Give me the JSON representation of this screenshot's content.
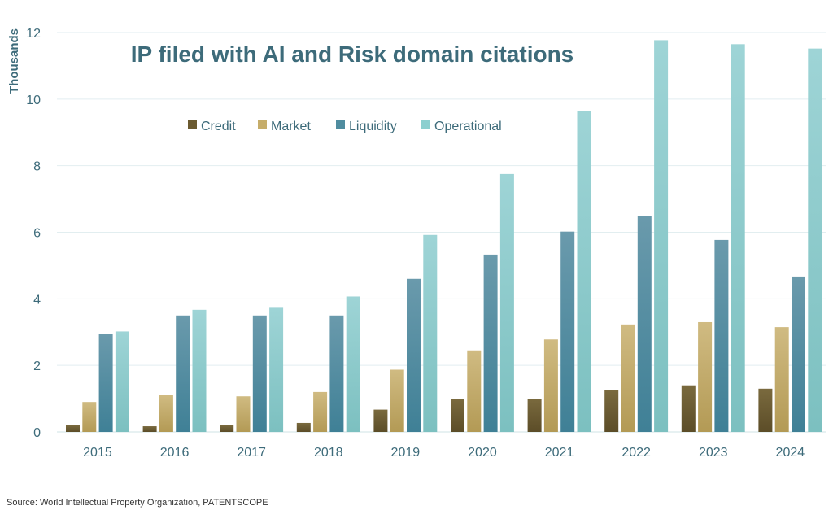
{
  "chart_data": {
    "type": "bar",
    "title": "IP filed with AI and Risk domain citations",
    "ylabel": "Thousands",
    "xlabel": "",
    "ylim": [
      0,
      12
    ],
    "yticks": [
      0,
      2,
      4,
      6,
      8,
      10,
      12
    ],
    "grid": true,
    "legend_position": "top-center",
    "categories": [
      "2015",
      "2016",
      "2017",
      "2018",
      "2019",
      "2020",
      "2021",
      "2022",
      "2023",
      "2024"
    ],
    "series": [
      {
        "name": "Credit",
        "color": "#6b5a30",
        "values": [
          0.2,
          0.17,
          0.2,
          0.27,
          0.67,
          0.98,
          1.0,
          1.25,
          1.4,
          1.3
        ]
      },
      {
        "name": "Market",
        "color": "#c6ad6a",
        "values": [
          0.9,
          1.1,
          1.07,
          1.2,
          1.87,
          2.45,
          2.78,
          3.23,
          3.3,
          3.15
        ]
      },
      {
        "name": "Liquidity",
        "color": "#4f8c9f",
        "values": [
          2.95,
          3.5,
          3.5,
          3.5,
          4.6,
          5.33,
          6.02,
          6.5,
          5.77,
          4.67
        ]
      },
      {
        "name": "Operational",
        "color": "#8ccfcf",
        "values": [
          3.02,
          3.67,
          3.73,
          4.07,
          5.92,
          7.75,
          9.65,
          11.77,
          11.65,
          11.52
        ]
      }
    ]
  },
  "source": "Source: World Intellectual Property Organization, PATENTSCOPE"
}
